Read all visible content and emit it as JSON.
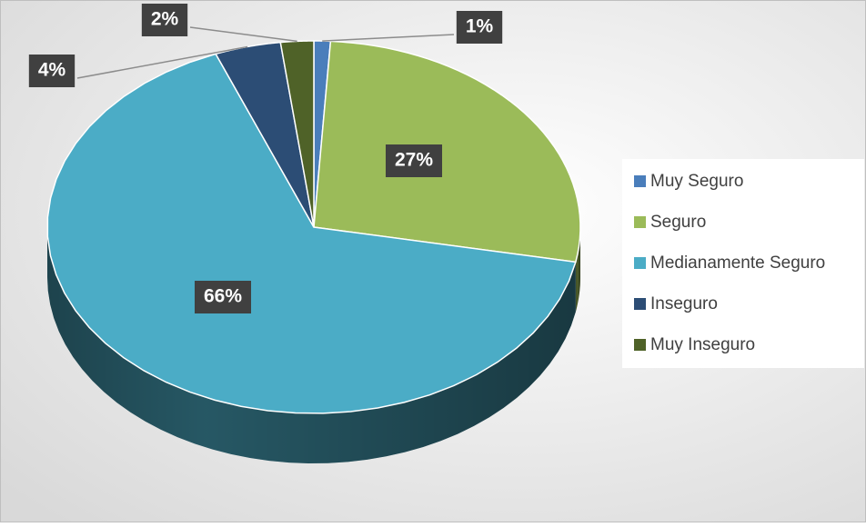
{
  "chart_data": {
    "type": "pie",
    "categories": [
      "Muy Seguro",
      "Seguro",
      "Medianamente Seguro",
      "Inseguro",
      "Muy Inseguro"
    ],
    "values": [
      1,
      27,
      66,
      4,
      2
    ],
    "value_labels": [
      "1%",
      "27%",
      "66%",
      "4%",
      "2%"
    ],
    "colors": [
      "#4a7ebb",
      "#9bbb59",
      "#4bacc6",
      "#2c4d75",
      "#4f6228"
    ],
    "legend": "right"
  }
}
